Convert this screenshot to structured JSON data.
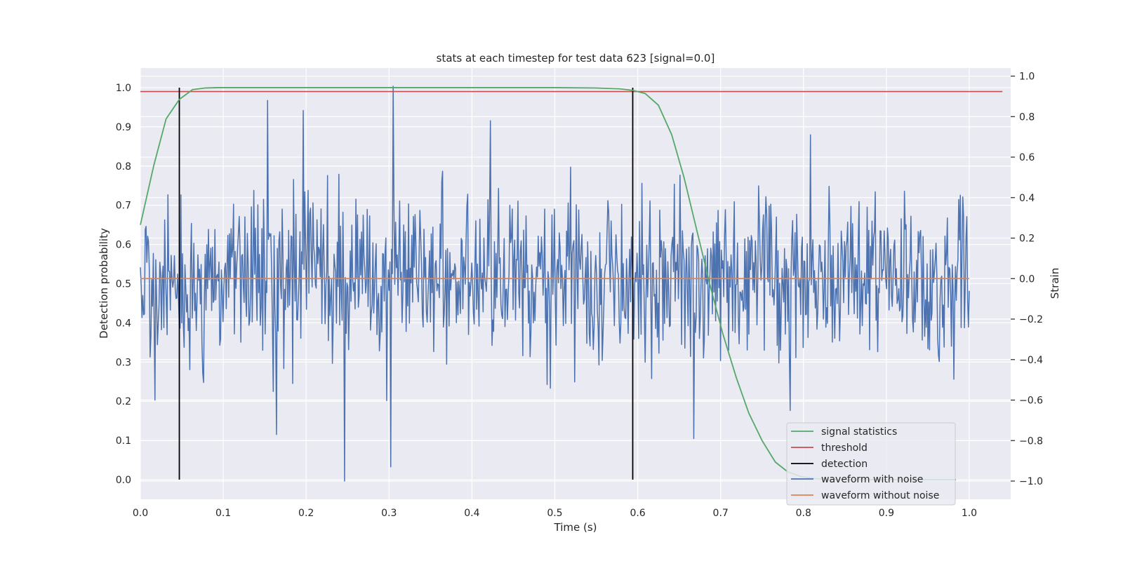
{
  "chart_data": {
    "type": "line",
    "title": "stats at each timestep for test data 623 [signal=0.0]",
    "xlabel": "Time (s)",
    "ylabel": "Detection probability",
    "y2label": "Strain",
    "xlim": [
      0.0,
      1.05
    ],
    "ylim": [
      -0.05,
      1.05
    ],
    "y2lim": [
      -1.09,
      1.04
    ],
    "xticks": [
      0.0,
      0.1,
      0.2,
      0.3,
      0.4,
      0.5,
      0.6,
      0.7,
      0.8,
      0.9,
      1.0
    ],
    "xtick_labels": [
      "0.0",
      "0.1",
      "0.2",
      "0.3",
      "0.4",
      "0.5",
      "0.6",
      "0.7",
      "0.8",
      "0.9",
      "1.0"
    ],
    "yticks": [
      0.0,
      0.1,
      0.2,
      0.3,
      0.4,
      0.5,
      0.6,
      0.7,
      0.8,
      0.9,
      1.0
    ],
    "ytick_labels": [
      "0.0",
      "0.1",
      "0.2",
      "0.3",
      "0.4",
      "0.5",
      "0.6",
      "0.7",
      "0.8",
      "0.9",
      "1.0"
    ],
    "y2ticks": [
      -1.0,
      -0.8,
      -0.6,
      -0.4,
      -0.2,
      0.0,
      0.2,
      0.4,
      0.6,
      0.8,
      1.0
    ],
    "y2tick_labels": [
      "−1.0",
      "−0.8",
      "−0.6",
      "−0.4",
      "−0.2",
      "0.0",
      "0.2",
      "0.4",
      "0.6",
      "0.8",
      "1.0"
    ],
    "grid": true,
    "legend_position": "bottom-right",
    "signal_statistics": {
      "name": "signal statistics",
      "color": "#55a868",
      "x": [
        0.0,
        0.016,
        0.031,
        0.047,
        0.063,
        0.078,
        0.094,
        0.2,
        0.3,
        0.4,
        0.5,
        0.55,
        0.578,
        0.594,
        0.609,
        0.625,
        0.641,
        0.656,
        0.672,
        0.688,
        0.703,
        0.719,
        0.734,
        0.75,
        0.766,
        0.781,
        0.797,
        0.813,
        0.828,
        0.844,
        0.9,
        0.95,
        0.984
      ],
      "y": [
        0.65,
        0.8,
        0.92,
        0.97,
        0.995,
        0.999,
        1.0,
        1.0,
        1.0,
        1.0,
        1.0,
        0.999,
        0.997,
        0.993,
        0.985,
        0.955,
        0.88,
        0.77,
        0.63,
        0.49,
        0.37,
        0.26,
        0.17,
        0.1,
        0.045,
        0.02,
        0.008,
        0.003,
        0.001,
        0.0,
        0.0,
        0.0,
        0.0
      ]
    },
    "threshold": {
      "name": "threshold",
      "color": "#c44e52",
      "value": 0.99
    },
    "detections": {
      "name": "detection",
      "color": "#000000",
      "x": [
        0.047,
        0.594
      ],
      "y_range": [
        0.0,
        1.0
      ]
    },
    "waveform_with_noise": {
      "name": "waveform with noise",
      "color": "#4c72b0",
      "axis": "strain",
      "n_points": 1024,
      "std": 0.2,
      "seed": 623,
      "peaks": [
        {
          "x": 0.305,
          "v": 0.95
        },
        {
          "x": 0.153,
          "v": 0.88
        },
        {
          "x": 0.196,
          "v": 0.83
        },
        {
          "x": 0.422,
          "v": 0.78
        },
        {
          "x": 0.246,
          "v": -1.0
        },
        {
          "x": 0.302,
          "v": -0.93
        },
        {
          "x": 0.164,
          "v": -0.77
        },
        {
          "x": 0.668,
          "v": -0.79
        },
        {
          "x": 0.808,
          "v": 0.71
        },
        {
          "x": 0.018,
          "v": -0.6
        }
      ]
    },
    "waveform_without_noise": {
      "name": "waveform without noise",
      "color": "#dd8452",
      "axis": "strain",
      "x_range": [
        0.0,
        1.0
      ],
      "value": 0.0
    },
    "legend": [
      "signal statistics",
      "threshold",
      "detection",
      "waveform with noise",
      "waveform without noise"
    ]
  }
}
